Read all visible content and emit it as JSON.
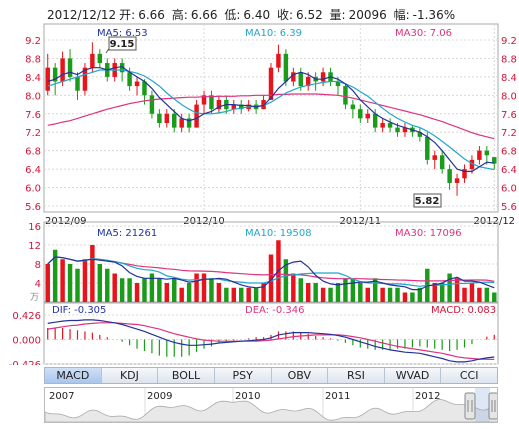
{
  "header": {
    "date": "2012/12/12",
    "open_label": "开:",
    "open": "6.66",
    "high_label": "高:",
    "high": "6.66",
    "low_label": "低:",
    "low": "6.40",
    "close_label": "收:",
    "close": "6.52",
    "volume_label": "量:",
    "volume": "20096",
    "change_label": "幅:",
    "change": "-1.36%"
  },
  "price_panel": {
    "ma5_label": "MA5: 6.53",
    "ma10_label": "MA10: 6.39",
    "ma30_label": "MA30: 7.06",
    "y_ticks": [
      "9.2",
      "8.8",
      "8.4",
      "8.0",
      "7.6",
      "7.2",
      "6.8",
      "6.4",
      "6.0",
      "5.6"
    ],
    "x_ticks": [
      "2012/09",
      "2012/10",
      "2012/11",
      "2012/12"
    ],
    "high_callout": "9.15",
    "low_callout": "5.82"
  },
  "volume_panel": {
    "ma5_label": "MA5: 21261",
    "ma10_label": "MA10: 19508",
    "ma30_label": "MA30: 17096",
    "y_ticks": [
      "16",
      "12",
      "8",
      "4"
    ],
    "unit_label": "万"
  },
  "macd_panel": {
    "dif_label": "DIF: -0.305",
    "dea_label": "DEA: -0.346",
    "macd_label": "MACD: 0.083",
    "y_ticks": [
      "0.426",
      "0.000",
      "-0.426"
    ]
  },
  "tabs": [
    "MACD",
    "KDJ",
    "BOLL",
    "PSY",
    "OBV",
    "RSI",
    "WVAD",
    "CCI"
  ],
  "active_tab": "MACD",
  "navigator": {
    "years": [
      "2007",
      "2009",
      "2010",
      "2011",
      "2012"
    ]
  },
  "colors": {
    "up": "#e8141b",
    "down": "#1a9b1a",
    "ma5": "#223399",
    "ma10": "#22a6c8",
    "ma30": "#dd3380",
    "grid": "#d8d8d8",
    "axis_text": "#d0163c"
  },
  "chart_data": {
    "type": "candlestick",
    "y_range": [
      5.6,
      9.2
    ],
    "volume_range": [
      0,
      16
    ],
    "volume_unit": "万",
    "macd_range": [
      -0.426,
      0.426
    ],
    "x_labels": [
      "2012/09",
      "2012/10",
      "2012/11",
      "2012/12"
    ],
    "candles": [
      [
        8.1,
        8.6,
        8.9,
        8.0,
        8.0
      ],
      [
        8.6,
        8.3,
        8.7,
        8.0,
        11
      ],
      [
        8.3,
        8.8,
        8.95,
        8.2,
        9
      ],
      [
        8.8,
        8.4,
        9.0,
        8.3,
        8
      ],
      [
        8.4,
        8.1,
        8.5,
        7.9,
        7
      ],
      [
        8.1,
        8.6,
        8.7,
        8.0,
        9
      ],
      [
        8.6,
        8.9,
        9.15,
        8.5,
        12
      ],
      [
        8.9,
        8.7,
        9.0,
        8.6,
        8
      ],
      [
        8.7,
        8.4,
        8.8,
        8.3,
        7
      ],
      [
        8.4,
        8.7,
        8.8,
        8.3,
        6
      ],
      [
        8.7,
        8.5,
        8.8,
        8.3,
        5
      ],
      [
        8.5,
        8.2,
        8.6,
        8.1,
        5
      ],
      [
        8.2,
        8.3,
        8.4,
        8.0,
        4
      ],
      [
        8.3,
        8.0,
        8.35,
        7.8,
        5
      ],
      [
        8.0,
        7.6,
        8.1,
        7.5,
        6
      ],
      [
        7.6,
        7.4,
        7.7,
        7.3,
        5
      ],
      [
        7.4,
        7.6,
        7.7,
        7.3,
        4
      ],
      [
        7.6,
        7.3,
        7.7,
        7.2,
        5
      ],
      [
        7.3,
        7.5,
        7.6,
        7.2,
        3
      ],
      [
        7.5,
        7.3,
        7.6,
        7.2,
        4
      ],
      [
        7.3,
        7.8,
        7.9,
        7.3,
        6
      ],
      [
        7.8,
        8.0,
        8.1,
        7.6,
        6
      ],
      [
        8.0,
        7.7,
        8.1,
        7.6,
        5
      ],
      [
        7.7,
        7.9,
        8.0,
        7.6,
        4
      ],
      [
        7.9,
        7.7,
        8.0,
        7.6,
        3
      ],
      [
        7.7,
        7.8,
        7.9,
        7.6,
        3
      ],
      [
        7.8,
        7.7,
        7.9,
        7.6,
        3
      ],
      [
        7.7,
        7.8,
        7.9,
        7.65,
        3
      ],
      [
        7.8,
        7.7,
        7.9,
        7.6,
        3
      ],
      [
        7.7,
        7.9,
        8.0,
        7.7,
        4
      ],
      [
        7.9,
        8.6,
        8.7,
        7.9,
        10
      ],
      [
        8.6,
        8.9,
        9.1,
        8.5,
        13
      ],
      [
        8.9,
        8.3,
        9.0,
        8.2,
        9
      ],
      [
        8.3,
        8.5,
        8.6,
        8.2,
        6
      ],
      [
        8.5,
        8.2,
        8.6,
        8.1,
        5
      ],
      [
        8.2,
        8.4,
        8.5,
        8.1,
        4
      ],
      [
        8.4,
        8.3,
        8.5,
        8.1,
        4
      ],
      [
        8.3,
        8.5,
        8.6,
        8.2,
        3
      ],
      [
        8.5,
        8.3,
        8.6,
        8.2,
        3
      ],
      [
        8.3,
        8.2,
        8.4,
        8.0,
        4
      ],
      [
        8.2,
        7.8,
        8.25,
        7.7,
        5
      ],
      [
        7.8,
        7.7,
        7.9,
        7.5,
        5
      ],
      [
        7.7,
        7.5,
        7.8,
        7.4,
        4
      ],
      [
        7.5,
        7.6,
        7.7,
        7.4,
        3
      ],
      [
        7.6,
        7.3,
        7.7,
        7.2,
        5
      ],
      [
        7.3,
        7.4,
        7.5,
        7.2,
        3
      ],
      [
        7.4,
        7.3,
        7.5,
        7.2,
        3
      ],
      [
        7.3,
        7.2,
        7.4,
        7.1,
        3
      ],
      [
        7.2,
        7.3,
        7.4,
        7.1,
        2
      ],
      [
        7.3,
        7.2,
        7.35,
        7.1,
        2
      ],
      [
        7.2,
        7.1,
        7.3,
        7.0,
        3
      ],
      [
        7.1,
        6.6,
        7.2,
        6.5,
        7
      ],
      [
        6.6,
        6.7,
        6.8,
        6.4,
        4
      ],
      [
        6.7,
        6.4,
        6.8,
        6.3,
        4
      ],
      [
        6.4,
        6.1,
        6.5,
        5.95,
        6
      ],
      [
        6.1,
        6.2,
        6.3,
        5.82,
        5
      ],
      [
        6.2,
        6.4,
        6.5,
        6.1,
        3
      ],
      [
        6.4,
        6.6,
        6.7,
        6.3,
        4
      ],
      [
        6.6,
        6.8,
        6.9,
        6.5,
        3
      ],
      [
        6.8,
        6.7,
        6.9,
        6.5,
        3
      ],
      [
        6.66,
        6.52,
        6.66,
        6.4,
        2
      ]
    ],
    "ma5": [
      8.3,
      8.35,
      8.45,
      8.5,
      8.45,
      8.55,
      8.6,
      8.6,
      8.55,
      8.6,
      8.62,
      8.5,
      8.4,
      8.3,
      8.15,
      7.95,
      7.8,
      7.65,
      7.5,
      7.45,
      7.5,
      7.6,
      7.65,
      7.75,
      7.8,
      7.8,
      7.78,
      7.78,
      7.75,
      7.78,
      7.95,
      8.15,
      8.3,
      8.45,
      8.5,
      8.45,
      8.35,
      8.35,
      8.4,
      8.35,
      8.25,
      8.1,
      7.9,
      7.75,
      7.6,
      7.5,
      7.42,
      7.35,
      7.3,
      7.25,
      7.2,
      7.1,
      6.98,
      6.8,
      6.6,
      6.4,
      6.35,
      6.35,
      6.45,
      6.55,
      6.53
    ],
    "ma10": [
      8.2,
      8.25,
      8.3,
      8.35,
      8.4,
      8.45,
      8.5,
      8.55,
      8.55,
      8.55,
      8.55,
      8.52,
      8.48,
      8.42,
      8.32,
      8.2,
      8.05,
      7.92,
      7.8,
      7.7,
      7.62,
      7.6,
      7.6,
      7.62,
      7.65,
      7.7,
      7.72,
      7.75,
      7.76,
      7.78,
      7.85,
      7.95,
      8.05,
      8.12,
      8.18,
      8.22,
      8.25,
      8.28,
      8.3,
      8.3,
      8.25,
      8.18,
      8.08,
      7.98,
      7.85,
      7.72,
      7.6,
      7.5,
      7.42,
      7.35,
      7.3,
      7.22,
      7.12,
      7.0,
      6.88,
      6.75,
      6.62,
      6.52,
      6.45,
      6.42,
      6.39
    ],
    "ma30": [
      7.35,
      7.38,
      7.42,
      7.45,
      7.5,
      7.55,
      7.6,
      7.65,
      7.7,
      7.74,
      7.78,
      7.82,
      7.85,
      7.88,
      7.9,
      7.92,
      7.93,
      7.94,
      7.95,
      7.96,
      7.96,
      7.97,
      7.97,
      7.98,
      7.98,
      7.98,
      7.99,
      7.99,
      8.0,
      8.0,
      8.0,
      8.02,
      8.02,
      8.03,
      8.03,
      8.03,
      8.03,
      8.02,
      8.01,
      8.0,
      7.97,
      7.94,
      7.9,
      7.86,
      7.82,
      7.78,
      7.74,
      7.7,
      7.66,
      7.62,
      7.58,
      7.53,
      7.48,
      7.43,
      7.37,
      7.31,
      7.25,
      7.19,
      7.14,
      7.1,
      7.06
    ],
    "dif": [
      0.28,
      0.3,
      0.32,
      0.33,
      0.33,
      0.34,
      0.34,
      0.33,
      0.31,
      0.29,
      0.26,
      0.22,
      0.18,
      0.14,
      0.09,
      0.04,
      -0.01,
      -0.05,
      -0.08,
      -0.1,
      -0.1,
      -0.09,
      -0.08,
      -0.06,
      -0.05,
      -0.04,
      -0.03,
      -0.02,
      -0.01,
      0.0,
      0.03,
      0.08,
      0.1,
      0.12,
      0.12,
      0.12,
      0.11,
      0.1,
      0.09,
      0.07,
      0.04,
      0.0,
      -0.04,
      -0.08,
      -0.12,
      -0.15,
      -0.18,
      -0.2,
      -0.22,
      -0.23,
      -0.24,
      -0.27,
      -0.3,
      -0.33,
      -0.37,
      -0.39,
      -0.39,
      -0.37,
      -0.34,
      -0.32,
      -0.305
    ],
    "dea": [
      0.18,
      0.2,
      0.22,
      0.24,
      0.25,
      0.27,
      0.28,
      0.29,
      0.29,
      0.29,
      0.28,
      0.27,
      0.26,
      0.24,
      0.21,
      0.18,
      0.14,
      0.1,
      0.07,
      0.04,
      0.01,
      -0.01,
      -0.02,
      -0.03,
      -0.03,
      -0.03,
      -0.03,
      -0.03,
      -0.03,
      -0.02,
      -0.01,
      0.01,
      0.03,
      0.05,
      0.06,
      0.07,
      0.08,
      0.08,
      0.08,
      0.08,
      0.07,
      0.05,
      0.03,
      0.0,
      -0.03,
      -0.06,
      -0.09,
      -0.12,
      -0.14,
      -0.16,
      -0.18,
      -0.2,
      -0.22,
      -0.24,
      -0.27,
      -0.3,
      -0.32,
      -0.33,
      -0.34,
      -0.345,
      -0.346
    ]
  }
}
